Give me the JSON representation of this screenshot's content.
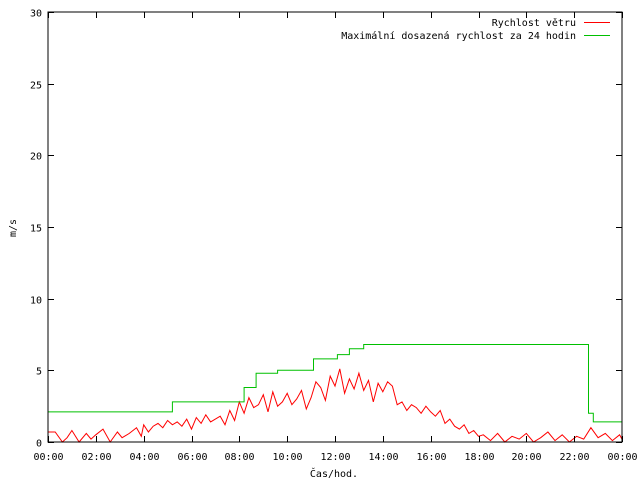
{
  "chart_data": {
    "type": "line",
    "xlabel": "Čas/hod.",
    "ylabel": "m/s",
    "xlim": [
      0,
      24
    ],
    "ylim": [
      0,
      30
    ],
    "yticks": [
      0,
      5,
      10,
      15,
      20,
      25,
      30
    ],
    "yticklabels": [
      "0",
      "5",
      "10",
      "15",
      "20",
      "25",
      "30"
    ],
    "xticks": [
      0,
      2,
      4,
      6,
      8,
      10,
      12,
      14,
      16,
      18,
      20,
      22,
      24
    ],
    "xticklabels": [
      "00:00",
      "02:00",
      "04:00",
      "06:00",
      "08:00",
      "10:00",
      "12:00",
      "14:00",
      "16:00",
      "18:00",
      "20:00",
      "22:00",
      "00:00"
    ],
    "grid": false,
    "legend_position": "top-right",
    "series": [
      {
        "name": "Rychlost větru",
        "color": "#ff0000",
        "x": [
          0,
          0.3,
          0.6,
          0.8,
          1.0,
          1.3,
          1.6,
          1.8,
          2.0,
          2.3,
          2.6,
          2.9,
          3.1,
          3.4,
          3.7,
          3.9,
          4.0,
          4.2,
          4.4,
          4.6,
          4.8,
          5.0,
          5.2,
          5.4,
          5.6,
          5.8,
          6.0,
          6.2,
          6.4,
          6.6,
          6.8,
          7.0,
          7.2,
          7.4,
          7.6,
          7.8,
          8.0,
          8.2,
          8.4,
          8.6,
          8.8,
          9.0,
          9.2,
          9.4,
          9.6,
          9.8,
          10.0,
          10.2,
          10.4,
          10.6,
          10.8,
          11.0,
          11.2,
          11.4,
          11.6,
          11.8,
          12.0,
          12.2,
          12.4,
          12.6,
          12.8,
          13.0,
          13.2,
          13.4,
          13.6,
          13.8,
          14.0,
          14.2,
          14.4,
          14.6,
          14.8,
          15.0,
          15.2,
          15.4,
          15.6,
          15.8,
          16.0,
          16.2,
          16.4,
          16.6,
          16.8,
          17.0,
          17.2,
          17.4,
          17.6,
          17.8,
          18.0,
          18.2,
          18.5,
          18.8,
          19.1,
          19.4,
          19.7,
          20.0,
          20.3,
          20.6,
          20.9,
          21.2,
          21.5,
          21.8,
          22.1,
          22.4,
          22.7,
          23.0,
          23.3,
          23.6,
          23.9,
          24.0
        ],
        "values": [
          0.7,
          0.7,
          0.0,
          0.3,
          0.8,
          0.0,
          0.6,
          0.2,
          0.5,
          0.9,
          0.0,
          0.7,
          0.3,
          0.6,
          1.0,
          0.4,
          1.2,
          0.7,
          1.1,
          1.3,
          1.0,
          1.5,
          1.2,
          1.4,
          1.1,
          1.6,
          0.9,
          1.7,
          1.3,
          1.9,
          1.4,
          1.6,
          1.8,
          1.2,
          2.2,
          1.5,
          2.8,
          2.0,
          3.1,
          2.4,
          2.6,
          3.3,
          2.1,
          3.5,
          2.5,
          2.8,
          3.4,
          2.6,
          3.0,
          3.6,
          2.3,
          3.1,
          4.2,
          3.8,
          2.9,
          4.6,
          3.9,
          5.1,
          3.4,
          4.4,
          3.7,
          4.8,
          3.6,
          4.3,
          2.8,
          4.1,
          3.5,
          4.2,
          3.9,
          2.6,
          2.8,
          2.2,
          2.6,
          2.4,
          2.0,
          2.5,
          2.1,
          1.8,
          2.2,
          1.3,
          1.6,
          1.1,
          0.9,
          1.2,
          0.6,
          0.8,
          0.4,
          0.5,
          0.1,
          0.6,
          0.0,
          0.4,
          0.2,
          0.6,
          0.0,
          0.3,
          0.7,
          0.1,
          0.5,
          0.0,
          0.4,
          0.2,
          1.0,
          0.3,
          0.6,
          0.1,
          0.5,
          0.2
        ],
        "style": "line"
      },
      {
        "name": "Maximální dosazená rychlost za 24 hodin",
        "color": "#00c000",
        "x": [
          0,
          5.2,
          5.2,
          8.2,
          8.2,
          8.7,
          8.7,
          9.6,
          9.6,
          11.1,
          11.1,
          12.1,
          12.1,
          12.6,
          12.6,
          13.2,
          13.2,
          22.6,
          22.6,
          22.8,
          22.8,
          24.0
        ],
        "values": [
          2.1,
          2.1,
          2.8,
          2.8,
          3.8,
          3.8,
          4.8,
          4.8,
          5.0,
          5.0,
          5.8,
          5.8,
          6.1,
          6.1,
          6.5,
          6.5,
          6.8,
          6.8,
          2.0,
          2.0,
          1.4,
          1.4
        ],
        "style": "step"
      }
    ]
  }
}
